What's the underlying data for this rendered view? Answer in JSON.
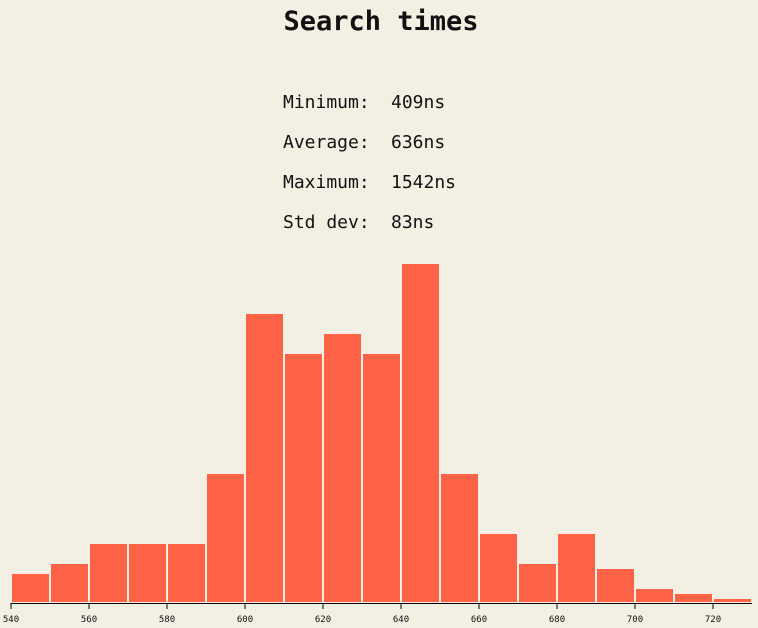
{
  "stats": {
    "items": [
      {
        "label": "Minimum:",
        "value": "409ns"
      },
      {
        "label": "Average:",
        "value": "636ns"
      },
      {
        "label": "Maximum:",
        "value": "1542ns"
      },
      {
        "label": "Std dev:",
        "value": "83ns"
      }
    ]
  },
  "chart_data": {
    "type": "bar",
    "title": "Search times",
    "xlabel": "",
    "ylabel": "",
    "xlim": [
      540,
      730
    ],
    "bin_width": 10,
    "bins": [
      540,
      550,
      560,
      570,
      580,
      590,
      600,
      610,
      620,
      630,
      640,
      650,
      660,
      670,
      680,
      690,
      700,
      710,
      720
    ],
    "values": [
      3,
      4,
      6,
      6,
      6,
      13,
      29,
      25,
      27,
      25,
      34,
      13,
      7,
      4,
      7,
      3.5,
      1.5,
      1,
      0.5
    ],
    "x_ticks": [
      "540",
      "560",
      "580",
      "600",
      "620",
      "640",
      "660",
      "680",
      "700",
      "720"
    ],
    "color": "#ff6347",
    "grid": false
  }
}
